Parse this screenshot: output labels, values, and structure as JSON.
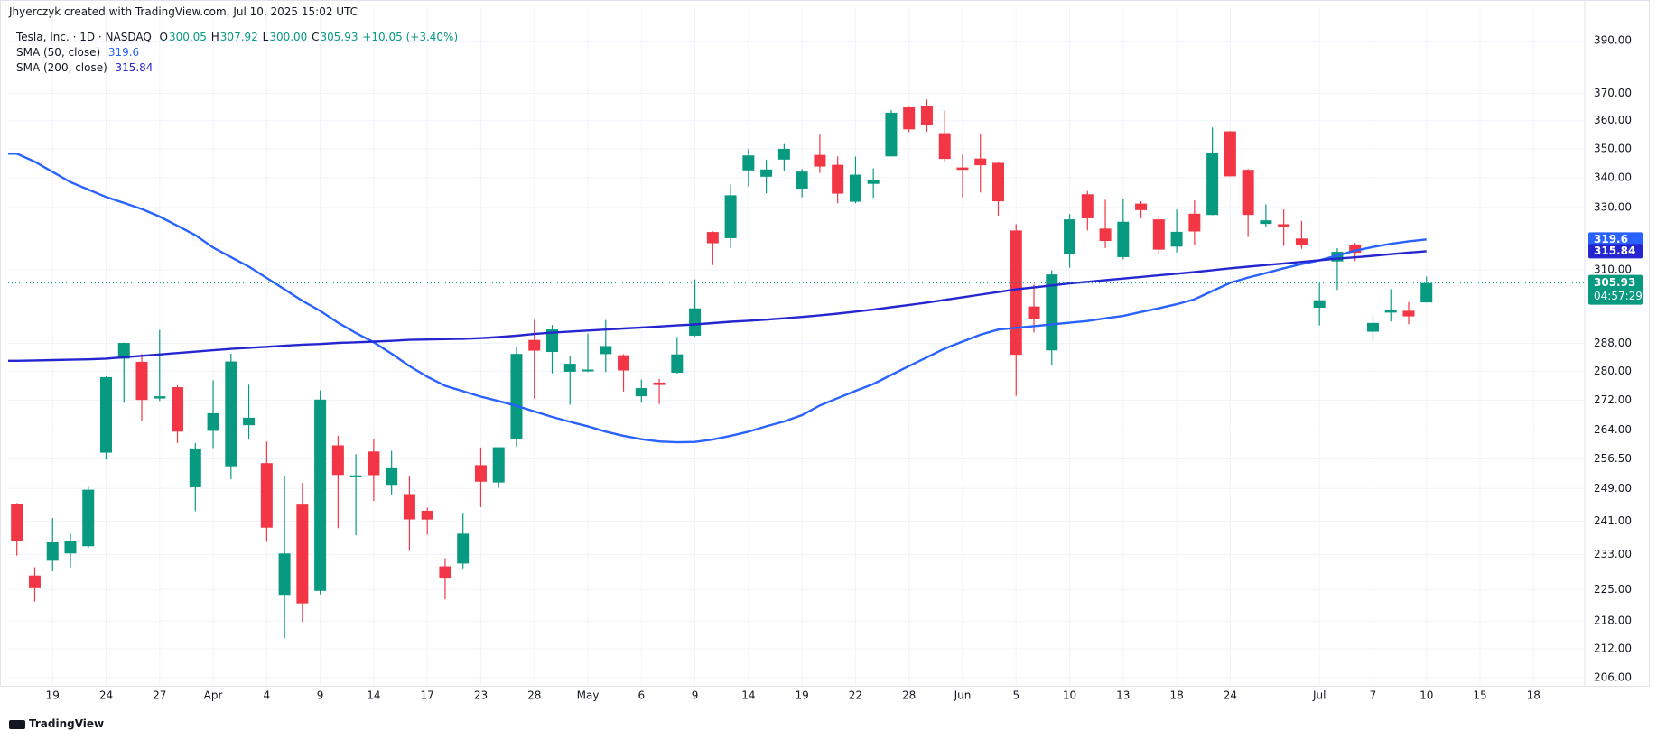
{
  "chart_data": {
    "type": "candlestick",
    "credit": "Jhyerczyk created with TradingView.com, Jul 10, 2025 15:02 UTC",
    "title": "Tesla, Inc. · 1D · NASDAQ",
    "legend_letters": [
      "O",
      "H",
      "L",
      "C"
    ],
    "value_labels": {
      "open": "300.05",
      "high": "307.92",
      "low": "300.00",
      "close": "305.93"
    },
    "change_label": "+10.05 (+3.40%)",
    "countdown": "04:57:29",
    "logo": "TradingView",
    "up_color": "#089981",
    "down_color": "#f23645",
    "log_scale": true,
    "grid": true,
    "categories": [
      null,
      null,
      "19",
      null,
      null,
      "24",
      null,
      null,
      "27",
      null,
      null,
      "Apr",
      null,
      null,
      "4",
      null,
      null,
      "9",
      null,
      null,
      "14",
      null,
      null,
      "17",
      null,
      null,
      "23",
      null,
      null,
      "28",
      null,
      null,
      "May",
      null,
      null,
      "6",
      null,
      null,
      "9",
      null,
      null,
      "14",
      null,
      null,
      "19",
      null,
      null,
      "22",
      null,
      null,
      "28",
      null,
      null,
      "Jun",
      null,
      null,
      "5",
      null,
      null,
      "10",
      null,
      null,
      "13",
      null,
      null,
      "18",
      null,
      null,
      "24",
      null,
      null,
      null,
      null,
      "Jul",
      null,
      null,
      "7",
      null,
      null,
      "10"
    ],
    "future_labels": [
      "15",
      "18"
    ],
    "open": [
      245.1,
      228.2,
      231.6,
      233.3,
      234.99,
      258.1,
      283.6,
      282.7,
      272.5,
      275.6,
      249.3,
      263.8,
      254.6,
      265.3,
      255.4,
      223.8,
      245.0,
      224.7,
      260.0,
      251.8,
      258.4,
      249.9,
      247.6,
      243.5,
      230.3,
      230.96,
      254.9,
      250.5,
      261.7,
      288.98,
      285.5,
      279.9,
      280.01,
      284.9,
      284.57,
      273.11,
      276.88,
      279.63,
      290.21,
      321.99,
      320.0,
      342.5,
      340.34,
      346.24,
      336.3,
      347.87,
      344.43,
      331.9,
      337.92,
      347.35,
      364.84,
      365.29,
      355.52,
      343.5,
      346.6,
      345.1,
      322.49,
      298.83,
      285.96,
      314.94,
      334.4,
      323.08,
      313.97,
      331.29,
      326.09,
      317.31,
      327.95,
      327.54,
      356.17,
      342.7,
      324.61,
      324.51,
      319.9,
      298.46,
      312.63,
      317.99,
      291.37,
      297.0,
      297.55,
      300.05
    ],
    "high": [
      245.4,
      230.1,
      241.7,
      238.0,
      249.5,
      278.6,
      288.2,
      284.9,
      291.9,
      276.1,
      260.6,
      277.5,
      284.99,
      276.3,
      261.0,
      252.0,
      250.4,
      274.7,
      262.5,
      257.7,
      261.8,
      258.6,
      251.97,
      244.3,
      232.2,
      242.8,
      259.45,
      259.54,
      286.85,
      294.86,
      293.32,
      284.45,
      290.87,
      294.78,
      284.85,
      277.73,
      277.92,
      289.8,
      307.04,
      322.21,
      337.59,
      350.0,
      346.14,
      351.62,
      343.0,
      354.99,
      347.35,
      347.27,
      343.18,
      363.79,
      365.0,
      367.71,
      363.68,
      348.02,
      355.4,
      345.6,
      324.55,
      305.5,
      309.83,
      327.83,
      335.5,
      332.56,
      332.99,
      332.05,
      327.26,
      329.32,
      332.36,
      357.54,
      356.26,
      343.0,
      331.05,
      329.34,
      325.58,
      305.89,
      316.83,
      318.45,
      296.15,
      304.05,
      300.15,
      307.92
    ],
    "low": [
      232.8,
      222.3,
      229.2,
      230.1,
      234.6,
      256.3,
      271.3,
      266.5,
      271.8,
      260.6,
      243.4,
      259.3,
      251.3,
      261.5,
      236.0,
      214.3,
      217.8,
      223.9,
      239.3,
      237.6,
      245.9,
      247.5,
      233.9,
      237.7,
      222.8,
      229.85,
      244.4,
      249.2,
      259.6,
      272.42,
      279.47,
      270.78,
      279.81,
      279.81,
      274.4,
      271.35,
      271.0,
      279.41,
      290.0,
      311.5,
      316.8,
      337.0,
      334.72,
      342.33,
      333.37,
      341.63,
      331.39,
      331.39,
      333.21,
      347.32,
      355.91,
      356.0,
      345.29,
      333.33,
      335.0,
      327.33,
      273.21,
      291.14,
      281.85,
      310.67,
      322.5,
      316.86,
      313.3,
      326.41,
      314.74,
      315.45,
      317.78,
      327.48,
      340.44,
      320.4,
      323.61,
      317.5,
      316.6,
      293.21,
      303.82,
      312.76,
      288.77,
      294.35,
      293.55,
      300.0
    ],
    "close": [
      236.3,
      225.3,
      235.9,
      236.3,
      248.7,
      278.4,
      288.1,
      272.1,
      273.1,
      263.6,
      259.2,
      268.5,
      282.8,
      267.3,
      239.4,
      233.3,
      221.9,
      272.2,
      252.4,
      252.3,
      252.35,
      254.1,
      241.4,
      241.37,
      227.5,
      237.97,
      250.7,
      259.51,
      284.95,
      285.88,
      292.03,
      282.16,
      280.52,
      287.21,
      280.26,
      275.35,
      276.22,
      284.82,
      298.26,
      318.38,
      334.07,
      347.68,
      342.82,
      349.98,
      342.09,
      343.82,
      334.62,
      341.04,
      339.34,
      362.89,
      356.9,
      358.43,
      346.46,
      342.69,
      344.27,
      332.05,
      284.7,
      295.14,
      308.58,
      326.09,
      326.43,
      319.11,
      325.31,
      329.13,
      316.35,
      322.05,
      322.16,
      348.68,
      340.47,
      327.55,
      325.78,
      323.63,
      317.66,
      300.71,
      315.65,
      315.35,
      293.94,
      297.81,
      295.88,
      305.93
    ],
    "lines": [
      {
        "name": "SMA (50, close)",
        "color": "#2962ff",
        "values": [
          348.3,
          345.5,
          342,
          338.5,
          336,
          333.5,
          331.5,
          329.5,
          327,
          324,
          321,
          317,
          314,
          311,
          307.5,
          304,
          300.5,
          297.5,
          294,
          291,
          288.3,
          285,
          281.5,
          278.5,
          276,
          274.5,
          273,
          271.8,
          270.5,
          269,
          267.5,
          266.2,
          265,
          263.6,
          262.5,
          261.6,
          261,
          260.8,
          260.9,
          261.5,
          262.5,
          263.6,
          265,
          266.3,
          268,
          270.6,
          272.6,
          274.6,
          276.5,
          279,
          281.5,
          284,
          286.5,
          288.5,
          290.5,
          292,
          292.5,
          293,
          293.5,
          294,
          294.5,
          295.3,
          296,
          297.2,
          298.3,
          299.5,
          301,
          303.5,
          306,
          307.6,
          309,
          310.5,
          311.8,
          313,
          314.5,
          316,
          317.2,
          318.2,
          319,
          319.6
        ]
      },
      {
        "name": "SMA (200, close)",
        "color": "#2626d0",
        "values": [
          283.0,
          283.1,
          283.2,
          283.3,
          283.4,
          283.6,
          284.0,
          284.4,
          284.8,
          285.2,
          285.6,
          286.0,
          286.4,
          286.7,
          287.0,
          287.3,
          287.6,
          287.8,
          288.1,
          288.3,
          288.5,
          288.7,
          289.0,
          289.1,
          289.2,
          289.3,
          289.5,
          289.8,
          290.2,
          290.7,
          291.1,
          291.4,
          291.7,
          292.0,
          292.3,
          292.6,
          292.9,
          293.2,
          293.5,
          293.9,
          294.3,
          294.6,
          294.9,
          295.3,
          295.7,
          296.2,
          296.7,
          297.3,
          297.9,
          298.6,
          299.3,
          300.0,
          300.8,
          301.6,
          302.4,
          303.2,
          304.0,
          304.6,
          305.2,
          305.8,
          306.3,
          306.8,
          307.3,
          307.8,
          308.3,
          308.8,
          309.3,
          309.9,
          310.5,
          311.0,
          311.5,
          312.0,
          312.5,
          313.0,
          313.5,
          313.9,
          314.4,
          314.9,
          315.4,
          315.84
        ]
      }
    ],
    "ylim": [
      204.3,
      403
    ],
    "yticks": [
      {
        "value": 206,
        "label": "206.00"
      },
      {
        "value": 212,
        "label": "212.00"
      },
      {
        "value": 218,
        "label": "218.00"
      },
      {
        "value": 225,
        "label": "225.00"
      },
      {
        "value": 233,
        "label": "233.00"
      },
      {
        "value": 241,
        "label": "241.00"
      },
      {
        "value": 249,
        "label": "249.00"
      },
      {
        "value": 256.5,
        "label": "256.50"
      },
      {
        "value": 264,
        "label": "264.00"
      },
      {
        "value": 272,
        "label": "272.00"
      },
      {
        "value": 280,
        "label": "280.00"
      },
      {
        "value": 288,
        "label": "288.00"
      },
      {
        "value": 310,
        "label": "310.00"
      },
      {
        "value": 330,
        "label": "330.00"
      },
      {
        "value": 340,
        "label": "340.00"
      },
      {
        "value": 350,
        "label": "350.00"
      },
      {
        "value": 360,
        "label": "360.00"
      },
      {
        "value": 370,
        "label": "370.00"
      },
      {
        "value": 390,
        "label": "390.00"
      }
    ]
  }
}
